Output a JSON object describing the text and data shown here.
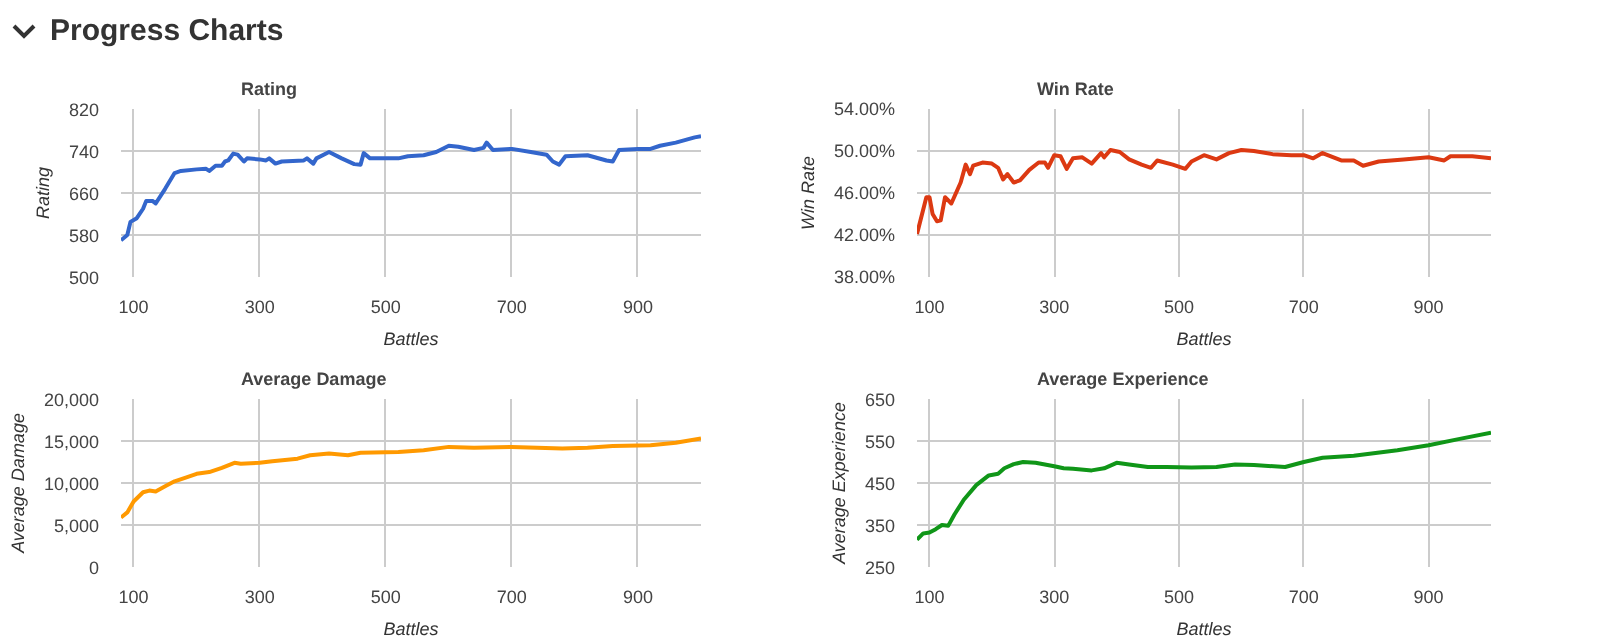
{
  "chart_data": [
    {
      "type": "other",
      "title": "Progress Charts"
    },
    {
      "type": "line",
      "title": "Rating",
      "xlabel": "Battles",
      "ylabel": "Rating",
      "grid": true,
      "xlim": [
        80,
        1000
      ],
      "xticks": [
        100,
        300,
        500,
        700,
        900
      ],
      "ylim": [
        500,
        820
      ],
      "yticks": [
        500,
        580,
        660,
        740,
        820
      ],
      "x": [
        80,
        90,
        95,
        105,
        115,
        120,
        130,
        135,
        150,
        165,
        175,
        200,
        215,
        220,
        230,
        240,
        245,
        250,
        258,
        265,
        275,
        280,
        300,
        310,
        315,
        325,
        335,
        370,
        375,
        385,
        390,
        410,
        430,
        450,
        460,
        465,
        475,
        520,
        535,
        560,
        580,
        600,
        615,
        640,
        655,
        660,
        670,
        700,
        730,
        755,
        765,
        775,
        785,
        820,
        850,
        860,
        870,
        900,
        920,
        935,
        960,
        990,
        1000
      ],
      "series": [
        {
          "color": "#3366cc",
          "values": [
            570,
            580,
            605,
            612,
            630,
            645,
            645,
            640,
            668,
            698,
            702,
            705,
            706,
            702,
            712,
            712,
            720,
            722,
            735,
            733,
            720,
            726,
            724,
            722,
            726,
            716,
            720,
            722,
            726,
            716,
            726,
            738,
            726,
            715,
            714,
            736,
            726,
            726,
            730,
            732,
            738,
            750,
            748,
            742,
            746,
            756,
            742,
            744,
            738,
            733,
            720,
            714,
            730,
            732,
            722,
            720,
            742,
            744,
            744,
            750,
            756,
            766,
            768
          ]
        }
      ]
    },
    {
      "type": "line",
      "title": "Win Rate",
      "xlabel": "Battles",
      "ylabel": "Win Rate",
      "grid": true,
      "xlim": [
        80,
        1000
      ],
      "xticks": [
        100,
        300,
        500,
        700,
        900
      ],
      "ylim": [
        38,
        54
      ],
      "yticks": [
        {
          "value": 38,
          "label": "38.00%"
        },
        {
          "value": 42,
          "label": "42.00%"
        },
        {
          "value": 46,
          "label": "46.00%"
        },
        {
          "value": 50,
          "label": "50.00%"
        },
        {
          "value": 54,
          "label": "54.00%"
        }
      ],
      "x": [
        80,
        95,
        100,
        105,
        112,
        118,
        125,
        135,
        150,
        158,
        165,
        170,
        185,
        200,
        210,
        218,
        225,
        235,
        245,
        260,
        275,
        285,
        290,
        300,
        310,
        320,
        330,
        345,
        360,
        375,
        380,
        390,
        405,
        420,
        440,
        455,
        465,
        490,
        510,
        520,
        540,
        560,
        580,
        600,
        620,
        650,
        680,
        700,
        715,
        730,
        760,
        780,
        795,
        820,
        860,
        900,
        925,
        935,
        970,
        1000
      ],
      "series": [
        {
          "color": "#dc3912",
          "values": [
            42.1,
            45.6,
            45.6,
            44,
            43.3,
            43.4,
            45.6,
            45,
            47,
            48.7,
            47.8,
            48.6,
            48.9,
            48.8,
            48.4,
            47.3,
            47.8,
            47,
            47.2,
            48.2,
            48.9,
            48.9,
            48.4,
            49.6,
            49.5,
            48.3,
            49.3,
            49.4,
            48.8,
            49.8,
            49.4,
            50.1,
            49.9,
            49.2,
            48.7,
            48.4,
            49.1,
            48.7,
            48.3,
            49,
            49.6,
            49.2,
            49.8,
            50.1,
            50,
            49.7,
            49.6,
            49.6,
            49.3,
            49.8,
            49.1,
            49.1,
            48.6,
            49,
            49.2,
            49.4,
            49.1,
            49.5,
            49.5,
            49.3
          ]
        }
      ]
    },
    {
      "type": "line",
      "title": "Average Damage",
      "xlabel": "Battles",
      "ylabel": "Average Damage",
      "grid": true,
      "xlim": [
        80,
        1000
      ],
      "xticks": [
        100,
        300,
        500,
        700,
        900
      ],
      "ylim": [
        0,
        20000
      ],
      "yticks": [
        0,
        {
          "value": 5000,
          "label": "5,000"
        },
        {
          "value": 10000,
          "label": "10,000"
        },
        {
          "value": 15000,
          "label": "15,000"
        },
        {
          "value": 20000,
          "label": "20,000"
        }
      ],
      "x": [
        80,
        90,
        100,
        115,
        125,
        135,
        150,
        165,
        185,
        200,
        220,
        240,
        260,
        270,
        300,
        320,
        360,
        380,
        410,
        440,
        460,
        520,
        560,
        600,
        640,
        700,
        780,
        820,
        860,
        920,
        960,
        1000
      ],
      "series": [
        {
          "color": "#ff9900",
          "values": [
            5900,
            6500,
            7800,
            8900,
            9100,
            9000,
            9600,
            10200,
            10700,
            11100,
            11300,
            11800,
            12400,
            12300,
            12400,
            12600,
            12900,
            13300,
            13500,
            13300,
            13600,
            13700,
            13900,
            14300,
            14200,
            14300,
            14100,
            14200,
            14400,
            14500,
            14800,
            15300
          ]
        }
      ]
    },
    {
      "type": "line",
      "title": "Average Experience",
      "xlabel": "Battles",
      "ylabel": "Average Experience",
      "grid": true,
      "xlim": [
        80,
        1000
      ],
      "xticks": [
        100,
        300,
        500,
        700,
        900
      ],
      "ylim": [
        250,
        650
      ],
      "yticks": [
        250,
        350,
        450,
        550,
        650
      ],
      "x": [
        80,
        90,
        100,
        110,
        120,
        130,
        140,
        155,
        175,
        195,
        210,
        220,
        235,
        250,
        270,
        300,
        315,
        330,
        360,
        380,
        400,
        420,
        450,
        480,
        520,
        560,
        590,
        620,
        670,
        700,
        730,
        780,
        850,
        900,
        950,
        1000
      ],
      "series": [
        {
          "color": "#109618",
          "values": [
            315,
            330,
            332,
            340,
            350,
            348,
            375,
            410,
            445,
            468,
            472,
            485,
            495,
            500,
            498,
            490,
            485,
            484,
            480,
            485,
            498,
            494,
            488,
            488,
            487,
            488,
            494,
            493,
            488,
            500,
            510,
            515,
            528,
            540,
            555,
            570
          ]
        }
      ]
    }
  ]
}
